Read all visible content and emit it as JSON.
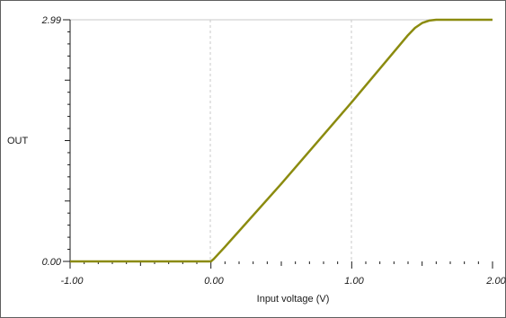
{
  "chart_data": {
    "type": "line",
    "ylabel": "OUT",
    "xlabel": "Input voltage (V)",
    "xlim": [
      -1.0,
      2.0
    ],
    "ylim": [
      0.0,
      2.99
    ],
    "x_ticks": [
      "-1.00",
      "0.00",
      "1.00",
      "2.00"
    ],
    "y_ticks": [
      "0.00",
      "2.99"
    ],
    "grid": "vertical dashed at x ticks, horizontal line at top",
    "line_color": "#8b8b0f",
    "series": [
      {
        "x": [
          -1.0,
          0.0,
          0.02,
          0.1,
          0.5,
          1.0,
          1.4,
          1.45,
          1.5,
          1.55,
          1.6,
          2.0
        ],
        "y": [
          0.0,
          0.0,
          0.03,
          0.18,
          0.96,
          1.97,
          2.8,
          2.89,
          2.95,
          2.98,
          2.99,
          2.99
        ]
      }
    ]
  }
}
